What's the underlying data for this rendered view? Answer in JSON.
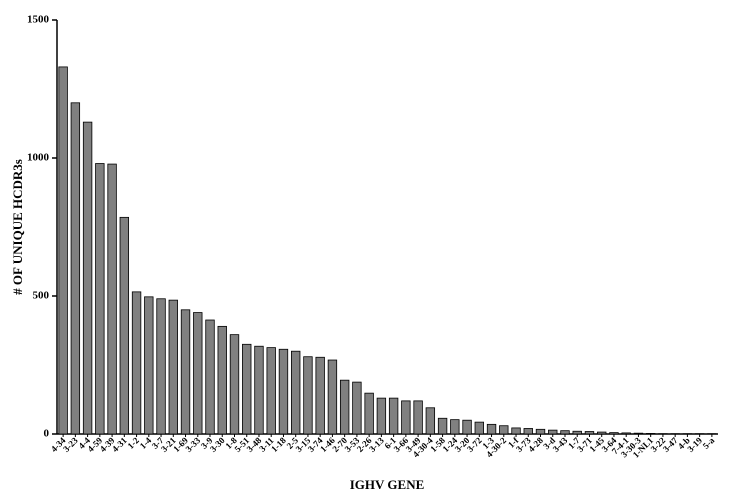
{
  "chart_data": {
    "type": "bar",
    "x_label": "IGHV GENE",
    "y_label": "# OF UNIQUE HCDR3s",
    "categories": [
      "4-34",
      "3-23",
      "4-4",
      "4-59",
      "4-39",
      "4-31",
      "1-2",
      "1-4",
      "3-7",
      "3-21",
      "1-69",
      "3-33",
      "3-9",
      "3-30",
      "1-8",
      "5-51",
      "3-48",
      "3-11",
      "1-18",
      "2-5",
      "3-15",
      "3-74",
      "1-46",
      "2-70",
      "3-53",
      "2-26",
      "3-13",
      "6-1",
      "3-66",
      "3-49",
      "4-30-4",
      "1-58",
      "1-24",
      "3-20",
      "3-72",
      "1-3",
      "4-30-2",
      "1-f",
      "3-73",
      "4-28",
      "3-d",
      "3-43",
      "1-7",
      "3-71",
      "1-45",
      "3-64",
      "7-4-1",
      "3-30-3",
      "1-NL1",
      "3-22",
      "3-47",
      "4-b",
      "3-19",
      "5-a"
    ],
    "values": [
      1330,
      1200,
      1130,
      980,
      978,
      785,
      515,
      497,
      490,
      485,
      450,
      440,
      413,
      390,
      360,
      325,
      318,
      313,
      307,
      300,
      280,
      278,
      268,
      195,
      188,
      148,
      130,
      130,
      120,
      120,
      95,
      57,
      52,
      50,
      43,
      35,
      30,
      22,
      20,
      17,
      14,
      12,
      10,
      9,
      7,
      5,
      4,
      3,
      2,
      1,
      1,
      1,
      1,
      1
    ],
    "color": "#808080",
    "ylim": [
      0,
      1500
    ],
    "yticks": [
      0,
      500,
      1000,
      1500
    ]
  }
}
